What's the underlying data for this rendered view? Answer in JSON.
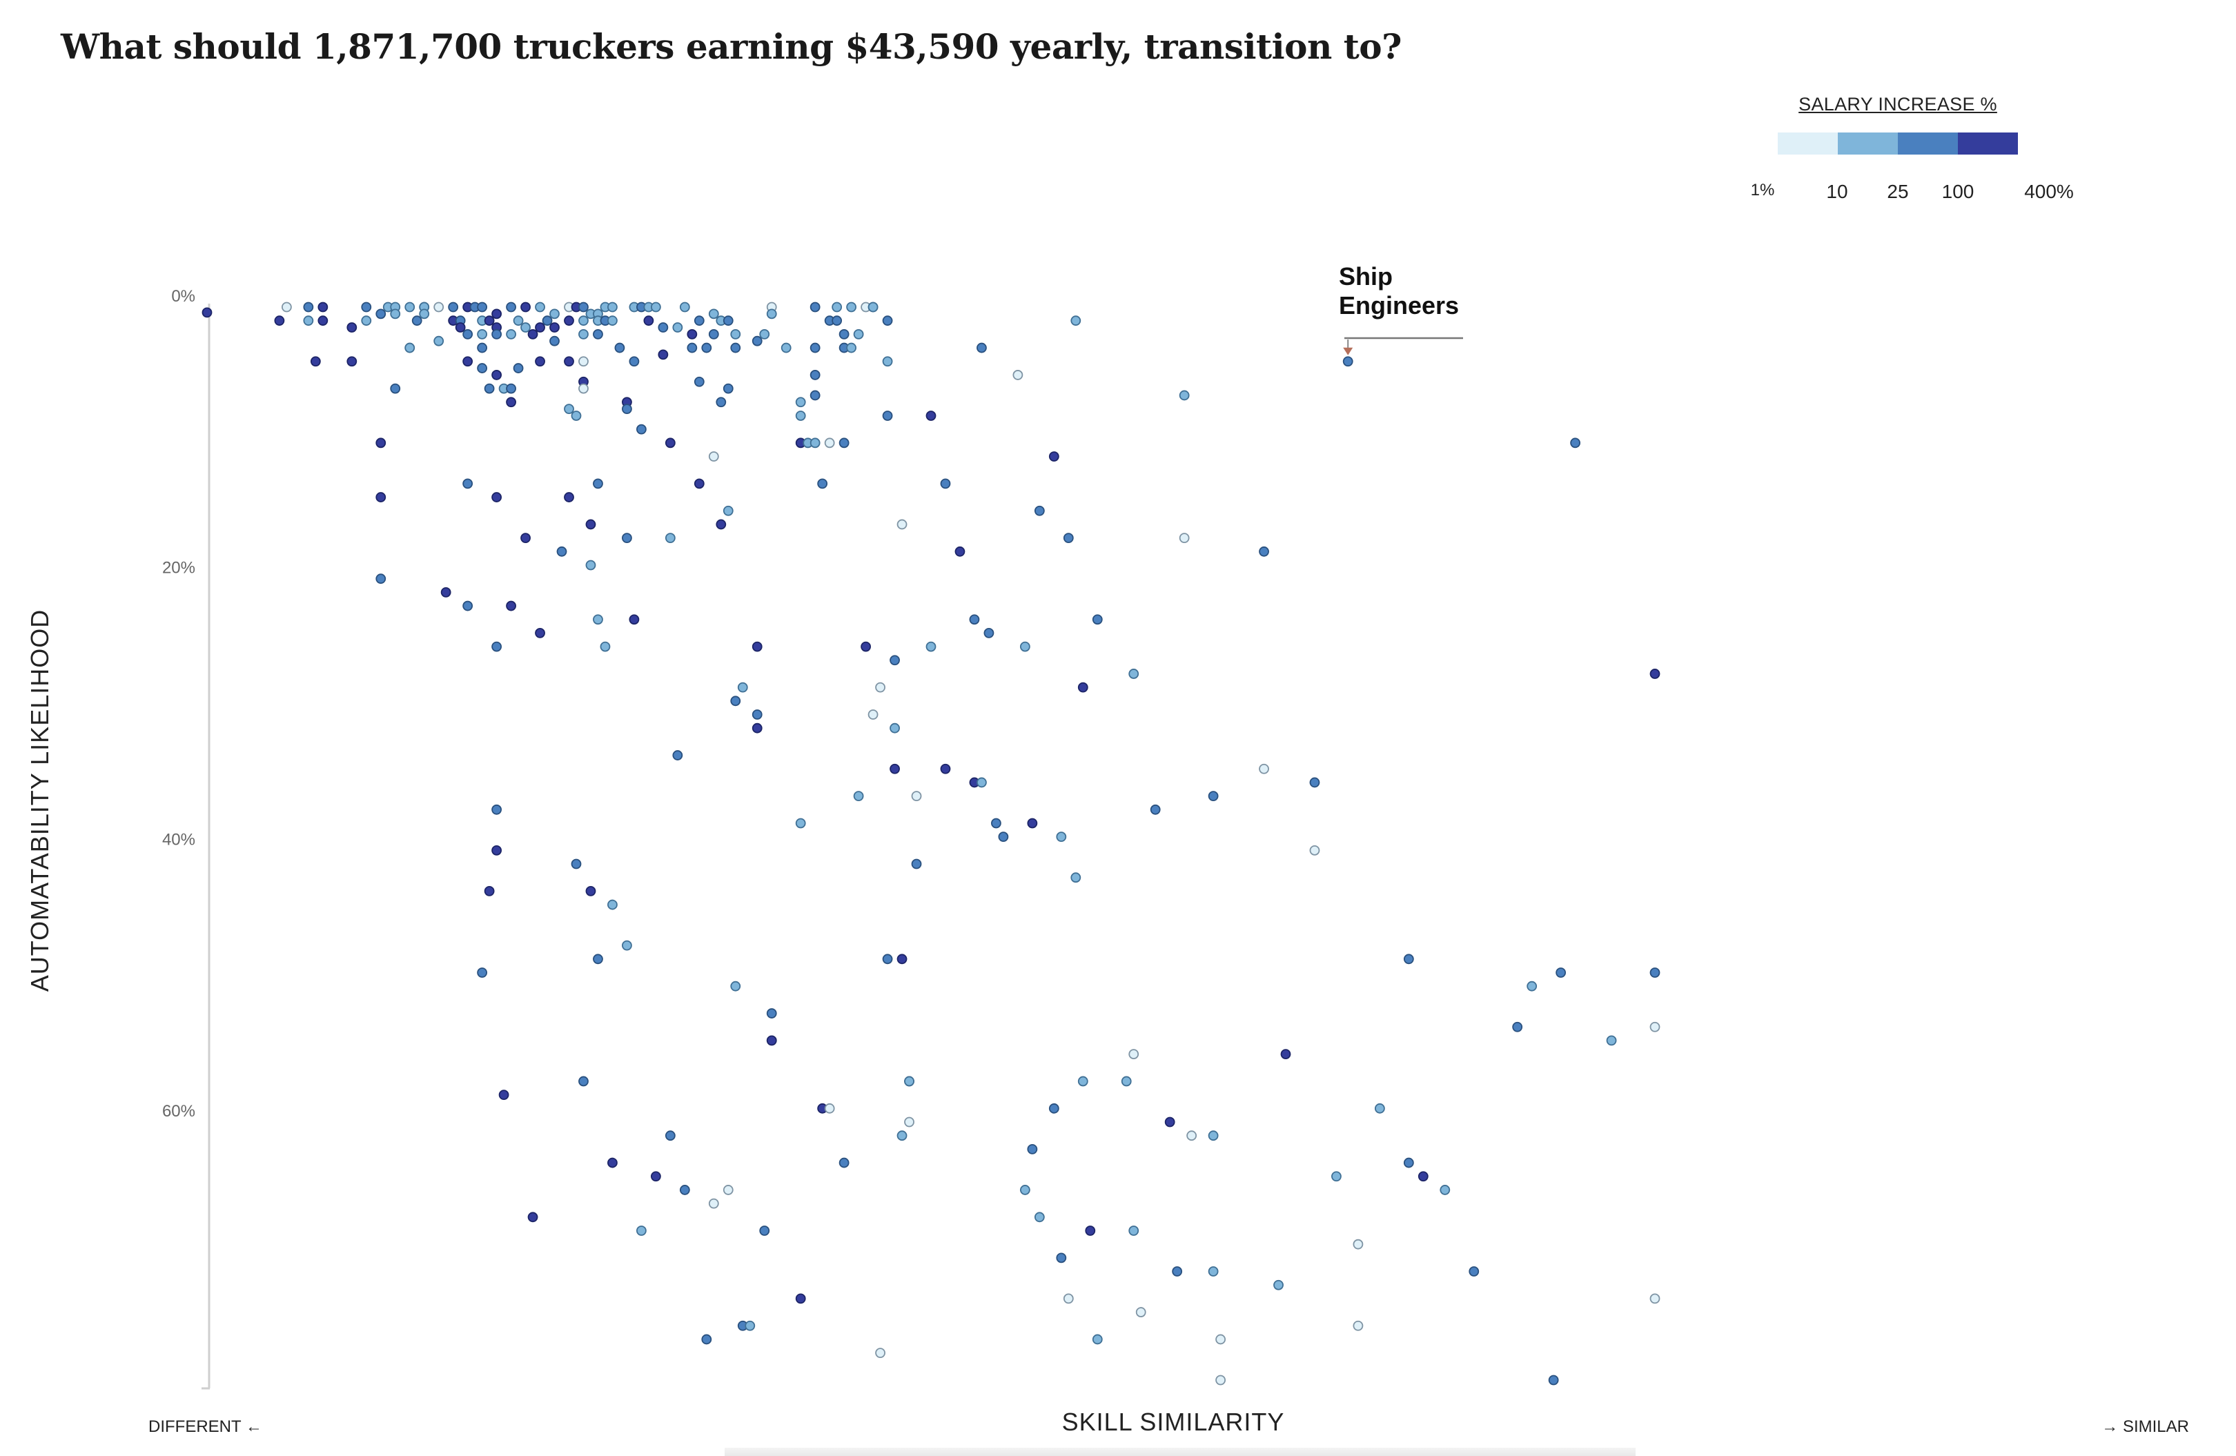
{
  "title": "What should 1,871,700 truckers earning $43,590 yearly, transition to?",
  "legend": {
    "title": "SALARY INCREASE %",
    "colors": [
      "#dff0f8",
      "#7fb5da",
      "#4a80bf",
      "#343d9c"
    ],
    "ticks": [
      "1%",
      "10",
      "25",
      "100",
      "400%"
    ]
  },
  "axes": {
    "x_title": "SKILL SIMILARITY",
    "x_left": "DIFFERENT ←",
    "x_right": "→ SIMILAR",
    "y_title": "AUTOMATABILITY LIKELIHOOD",
    "y_ticks": [
      "0%",
      "20%",
      "40%",
      "60%"
    ]
  },
  "annotation": {
    "line1": "Ship",
    "line2": "Engineers",
    "target": {
      "x": 0.788,
      "y": 4
    }
  },
  "chart_data": {
    "type": "scatter",
    "title": "What should 1,871,700 truckers earning $43,590 yearly, transition to?",
    "xlabel": "SKILL SIMILARITY",
    "ylabel": "AUTOMATABILITY LIKELIHOOD",
    "xlim": [
      0,
      1
    ],
    "ylim": [
      0,
      79
    ],
    "y_ticks": [
      0,
      20,
      40,
      60
    ],
    "grid": false,
    "legend_placement": "top-right",
    "color_scale": "salary increase %",
    "points": [
      [
        0.0,
        0.4,
        4
      ],
      [
        0.05,
        1,
        4
      ],
      [
        0.055,
        0,
        1
      ],
      [
        0.07,
        0,
        3
      ],
      [
        0.07,
        1,
        2
      ],
      [
        0.075,
        4,
        4
      ],
      [
        0.08,
        1,
        4
      ],
      [
        0.08,
        0,
        4
      ],
      [
        0.1,
        1.5,
        4
      ],
      [
        0.1,
        4,
        4
      ],
      [
        0.11,
        0,
        3
      ],
      [
        0.11,
        1,
        2
      ],
      [
        0.12,
        0.5,
        3
      ],
      [
        0.12,
        10,
        4
      ],
      [
        0.12,
        14,
        4
      ],
      [
        0.12,
        20,
        3
      ],
      [
        0.125,
        0,
        2
      ],
      [
        0.13,
        6,
        3
      ],
      [
        0.13,
        0,
        2
      ],
      [
        0.13,
        0.5,
        2
      ],
      [
        0.14,
        0,
        2
      ],
      [
        0.14,
        3,
        1
      ],
      [
        0.14,
        3,
        2
      ],
      [
        0.145,
        1,
        3
      ],
      [
        0.15,
        0,
        3
      ],
      [
        0.15,
        0,
        2
      ],
      [
        0.15,
        0.5,
        2
      ],
      [
        0.16,
        2.5,
        2
      ],
      [
        0.16,
        0,
        1
      ],
      [
        0.165,
        21,
        4
      ],
      [
        0.17,
        0,
        3
      ],
      [
        0.17,
        1,
        4
      ],
      [
        0.175,
        1,
        3
      ],
      [
        0.175,
        1.5,
        4
      ],
      [
        0.18,
        0,
        4
      ],
      [
        0.18,
        2,
        3
      ],
      [
        0.18,
        4,
        4
      ],
      [
        0.18,
        13,
        3
      ],
      [
        0.18,
        22,
        3
      ],
      [
        0.185,
        0,
        3
      ],
      [
        0.19,
        0,
        3
      ],
      [
        0.19,
        1,
        2
      ],
      [
        0.19,
        2,
        2
      ],
      [
        0.19,
        3,
        3
      ],
      [
        0.19,
        4.5,
        3
      ],
      [
        0.19,
        49,
        3
      ],
      [
        0.195,
        1,
        4
      ],
      [
        0.195,
        6,
        3
      ],
      [
        0.195,
        43,
        4
      ],
      [
        0.2,
        1.5,
        4
      ],
      [
        0.2,
        0.5,
        4
      ],
      [
        0.2,
        2,
        3
      ],
      [
        0.2,
        5,
        4
      ],
      [
        0.2,
        25,
        3
      ],
      [
        0.2,
        37,
        3
      ],
      [
        0.2,
        40,
        4
      ],
      [
        0.2,
        14,
        4
      ],
      [
        0.205,
        6,
        2
      ],
      [
        0.205,
        58,
        4
      ],
      [
        0.21,
        0,
        3
      ],
      [
        0.21,
        2,
        2
      ],
      [
        0.21,
        6,
        3
      ],
      [
        0.21,
        7,
        4
      ],
      [
        0.21,
        22,
        4
      ],
      [
        0.215,
        1,
        2
      ],
      [
        0.215,
        4.5,
        3
      ],
      [
        0.22,
        0,
        4
      ],
      [
        0.22,
        1.5,
        2
      ],
      [
        0.22,
        17,
        4
      ],
      [
        0.225,
        2,
        4
      ],
      [
        0.225,
        67,
        4
      ],
      [
        0.23,
        0,
        2
      ],
      [
        0.23,
        1.5,
        4
      ],
      [
        0.23,
        4,
        4
      ],
      [
        0.23,
        24,
        4
      ],
      [
        0.235,
        1,
        3
      ],
      [
        0.24,
        1.5,
        4
      ],
      [
        0.24,
        0.5,
        2
      ],
      [
        0.24,
        2.5,
        3
      ],
      [
        0.245,
        18,
        3
      ],
      [
        0.25,
        0,
        1
      ],
      [
        0.25,
        1,
        4
      ],
      [
        0.25,
        4,
        4
      ],
      [
        0.25,
        7.5,
        2
      ],
      [
        0.25,
        14,
        4
      ],
      [
        0.255,
        0,
        4
      ],
      [
        0.255,
        8,
        2
      ],
      [
        0.255,
        41,
        3
      ],
      [
        0.26,
        0,
        3
      ],
      [
        0.26,
        1,
        2
      ],
      [
        0.26,
        2,
        2
      ],
      [
        0.26,
        4,
        1
      ],
      [
        0.26,
        5.5,
        4
      ],
      [
        0.26,
        6,
        1
      ],
      [
        0.26,
        57,
        3
      ],
      [
        0.265,
        0.5,
        2
      ],
      [
        0.265,
        43,
        4
      ],
      [
        0.265,
        19,
        2
      ],
      [
        0.265,
        16,
        4
      ],
      [
        0.27,
        0.5,
        2
      ],
      [
        0.27,
        1,
        2
      ],
      [
        0.27,
        2,
        3
      ],
      [
        0.27,
        23,
        2
      ],
      [
        0.27,
        48,
        3
      ],
      [
        0.27,
        13,
        3
      ],
      [
        0.275,
        1,
        3
      ],
      [
        0.275,
        0,
        2
      ],
      [
        0.275,
        25,
        2
      ],
      [
        0.28,
        1,
        2
      ],
      [
        0.28,
        0,
        2
      ],
      [
        0.28,
        44,
        2
      ],
      [
        0.28,
        63,
        4
      ],
      [
        0.285,
        3,
        3
      ],
      [
        0.29,
        7,
        4
      ],
      [
        0.29,
        7.5,
        3
      ],
      [
        0.29,
        17,
        3
      ],
      [
        0.29,
        47,
        2
      ],
      [
        0.295,
        4,
        3
      ],
      [
        0.295,
        0,
        2
      ],
      [
        0.295,
        23,
        4
      ],
      [
        0.3,
        0,
        3
      ],
      [
        0.3,
        9,
        3
      ],
      [
        0.3,
        68,
        2
      ],
      [
        0.305,
        1,
        4
      ],
      [
        0.305,
        0,
        2
      ],
      [
        0.31,
        0,
        2
      ],
      [
        0.31,
        64,
        4
      ],
      [
        0.315,
        1.5,
        3
      ],
      [
        0.315,
        3.5,
        4
      ],
      [
        0.32,
        17,
        2
      ],
      [
        0.32,
        61,
        3
      ],
      [
        0.32,
        10,
        4
      ],
      [
        0.325,
        1.5,
        2
      ],
      [
        0.325,
        33,
        3
      ],
      [
        0.33,
        0,
        2
      ],
      [
        0.33,
        65,
        3
      ],
      [
        0.335,
        3,
        3
      ],
      [
        0.335,
        2,
        4
      ],
      [
        0.34,
        1,
        3
      ],
      [
        0.34,
        5.5,
        3
      ],
      [
        0.34,
        13,
        4
      ],
      [
        0.345,
        3,
        3
      ],
      [
        0.345,
        76,
        3
      ],
      [
        0.35,
        11,
        1
      ],
      [
        0.35,
        66,
        1
      ],
      [
        0.35,
        2,
        3
      ],
      [
        0.35,
        0.5,
        2
      ],
      [
        0.355,
        16,
        4
      ],
      [
        0.355,
        7,
        3
      ],
      [
        0.355,
        1,
        2
      ],
      [
        0.36,
        6,
        3
      ],
      [
        0.36,
        1,
        3
      ],
      [
        0.36,
        65,
        1
      ],
      [
        0.36,
        15,
        2
      ],
      [
        0.365,
        29,
        3
      ],
      [
        0.365,
        2,
        2
      ],
      [
        0.365,
        3,
        3
      ],
      [
        0.365,
        50,
        2
      ],
      [
        0.37,
        28,
        2
      ],
      [
        0.37,
        75,
        3
      ],
      [
        0.375,
        75,
        2
      ],
      [
        0.38,
        30,
        3
      ],
      [
        0.38,
        31,
        4
      ],
      [
        0.38,
        2.5,
        3
      ],
      [
        0.38,
        25,
        4
      ],
      [
        0.385,
        2,
        2
      ],
      [
        0.385,
        68,
        3
      ],
      [
        0.39,
        0,
        1
      ],
      [
        0.39,
        0.5,
        2
      ],
      [
        0.39,
        52,
        3
      ],
      [
        0.39,
        54,
        1
      ],
      [
        0.39,
        54,
        4
      ],
      [
        0.4,
        3,
        2
      ],
      [
        0.41,
        7,
        2
      ],
      [
        0.41,
        8,
        2
      ],
      [
        0.41,
        10,
        4
      ],
      [
        0.41,
        38,
        2
      ],
      [
        0.41,
        73,
        4
      ],
      [
        0.415,
        10,
        2
      ],
      [
        0.42,
        10,
        2
      ],
      [
        0.42,
        5,
        3
      ],
      [
        0.42,
        6.5,
        3
      ],
      [
        0.42,
        0,
        3
      ],
      [
        0.42,
        3,
        3
      ],
      [
        0.425,
        13,
        3
      ],
      [
        0.425,
        59,
        4
      ],
      [
        0.43,
        10,
        1
      ],
      [
        0.43,
        59,
        1
      ],
      [
        0.43,
        1,
        3
      ],
      [
        0.435,
        0,
        2
      ],
      [
        0.435,
        1,
        3
      ],
      [
        0.44,
        2,
        3
      ],
      [
        0.44,
        3,
        3
      ],
      [
        0.44,
        10,
        3
      ],
      [
        0.44,
        63,
        3
      ],
      [
        0.445,
        0,
        2
      ],
      [
        0.445,
        3,
        2
      ],
      [
        0.45,
        2,
        2
      ],
      [
        0.45,
        36,
        2
      ],
      [
        0.455,
        0,
        1
      ],
      [
        0.455,
        25,
        4
      ],
      [
        0.46,
        0,
        2
      ],
      [
        0.46,
        0,
        2
      ],
      [
        0.46,
        30,
        1
      ],
      [
        0.465,
        28,
        1
      ],
      [
        0.465,
        77,
        1
      ],
      [
        0.47,
        1,
        3
      ],
      [
        0.47,
        4,
        2
      ],
      [
        0.47,
        8,
        3
      ],
      [
        0.47,
        48,
        3
      ],
      [
        0.475,
        31,
        2
      ],
      [
        0.475,
        26,
        3
      ],
      [
        0.475,
        34,
        4
      ],
      [
        0.48,
        16,
        1
      ],
      [
        0.48,
        48,
        4
      ],
      [
        0.48,
        61,
        2
      ],
      [
        0.485,
        60,
        1
      ],
      [
        0.485,
        57,
        3
      ],
      [
        0.485,
        57,
        2
      ],
      [
        0.49,
        36,
        1
      ],
      [
        0.49,
        41,
        3
      ],
      [
        0.5,
        25,
        2
      ],
      [
        0.5,
        8,
        4
      ],
      [
        0.51,
        13,
        3
      ],
      [
        0.51,
        34,
        4
      ],
      [
        0.52,
        18,
        4
      ],
      [
        0.53,
        35,
        4
      ],
      [
        0.53,
        23,
        3
      ],
      [
        0.535,
        35,
        2
      ],
      [
        0.535,
        3,
        3
      ],
      [
        0.54,
        24,
        3
      ],
      [
        0.545,
        38,
        3
      ],
      [
        0.55,
        39,
        3
      ],
      [
        0.56,
        5,
        1
      ],
      [
        0.565,
        25,
        2
      ],
      [
        0.565,
        65,
        2
      ],
      [
        0.57,
        38,
        4
      ],
      [
        0.57,
        62,
        3
      ],
      [
        0.575,
        15,
        3
      ],
      [
        0.575,
        67,
        2
      ],
      [
        0.585,
        11,
        4
      ],
      [
        0.585,
        59,
        3
      ],
      [
        0.59,
        70,
        3
      ],
      [
        0.59,
        39,
        2
      ],
      [
        0.595,
        17,
        3
      ],
      [
        0.595,
        73,
        1
      ],
      [
        0.6,
        1,
        2
      ],
      [
        0.6,
        42,
        2
      ],
      [
        0.605,
        57,
        2
      ],
      [
        0.605,
        28,
        4
      ],
      [
        0.61,
        68,
        4
      ],
      [
        0.615,
        23,
        3
      ],
      [
        0.615,
        76,
        2
      ],
      [
        0.635,
        57,
        2
      ],
      [
        0.64,
        27,
        2
      ],
      [
        0.64,
        55,
        1
      ],
      [
        0.64,
        68,
        2
      ],
      [
        0.645,
        74,
        1
      ],
      [
        0.655,
        37,
        3
      ],
      [
        0.665,
        60,
        4
      ],
      [
        0.67,
        71,
        3
      ],
      [
        0.675,
        6.5,
        2
      ],
      [
        0.675,
        17,
        1
      ],
      [
        0.68,
        61,
        1
      ],
      [
        0.695,
        36,
        3
      ],
      [
        0.695,
        71,
        2
      ],
      [
        0.695,
        61,
        2
      ],
      [
        0.7,
        76,
        1
      ],
      [
        0.7,
        79,
        1
      ],
      [
        0.73,
        34,
        1
      ],
      [
        0.73,
        18,
        3
      ],
      [
        0.74,
        72,
        2
      ],
      [
        0.745,
        55,
        4
      ],
      [
        0.765,
        35,
        3
      ],
      [
        0.765,
        40,
        1
      ],
      [
        0.78,
        64,
        2
      ],
      [
        0.795,
        69,
        1
      ],
      [
        0.795,
        75,
        1
      ],
      [
        0.81,
        59,
        2
      ],
      [
        0.83,
        63,
        3
      ],
      [
        0.83,
        48,
        3
      ],
      [
        0.84,
        64,
        4
      ],
      [
        0.855,
        65,
        2
      ],
      [
        0.875,
        71,
        3
      ],
      [
        0.905,
        53,
        3
      ],
      [
        0.915,
        50,
        2
      ],
      [
        0.935,
        49,
        3
      ],
      [
        0.945,
        10,
        3
      ],
      [
        0.93,
        79,
        3
      ],
      [
        0.97,
        54,
        2
      ],
      [
        1.0,
        27,
        4
      ],
      [
        1.0,
        49,
        3
      ],
      [
        1.0,
        53,
        1
      ],
      [
        1.0,
        73,
        1
      ],
      [
        0.788,
        4,
        3
      ]
    ]
  }
}
